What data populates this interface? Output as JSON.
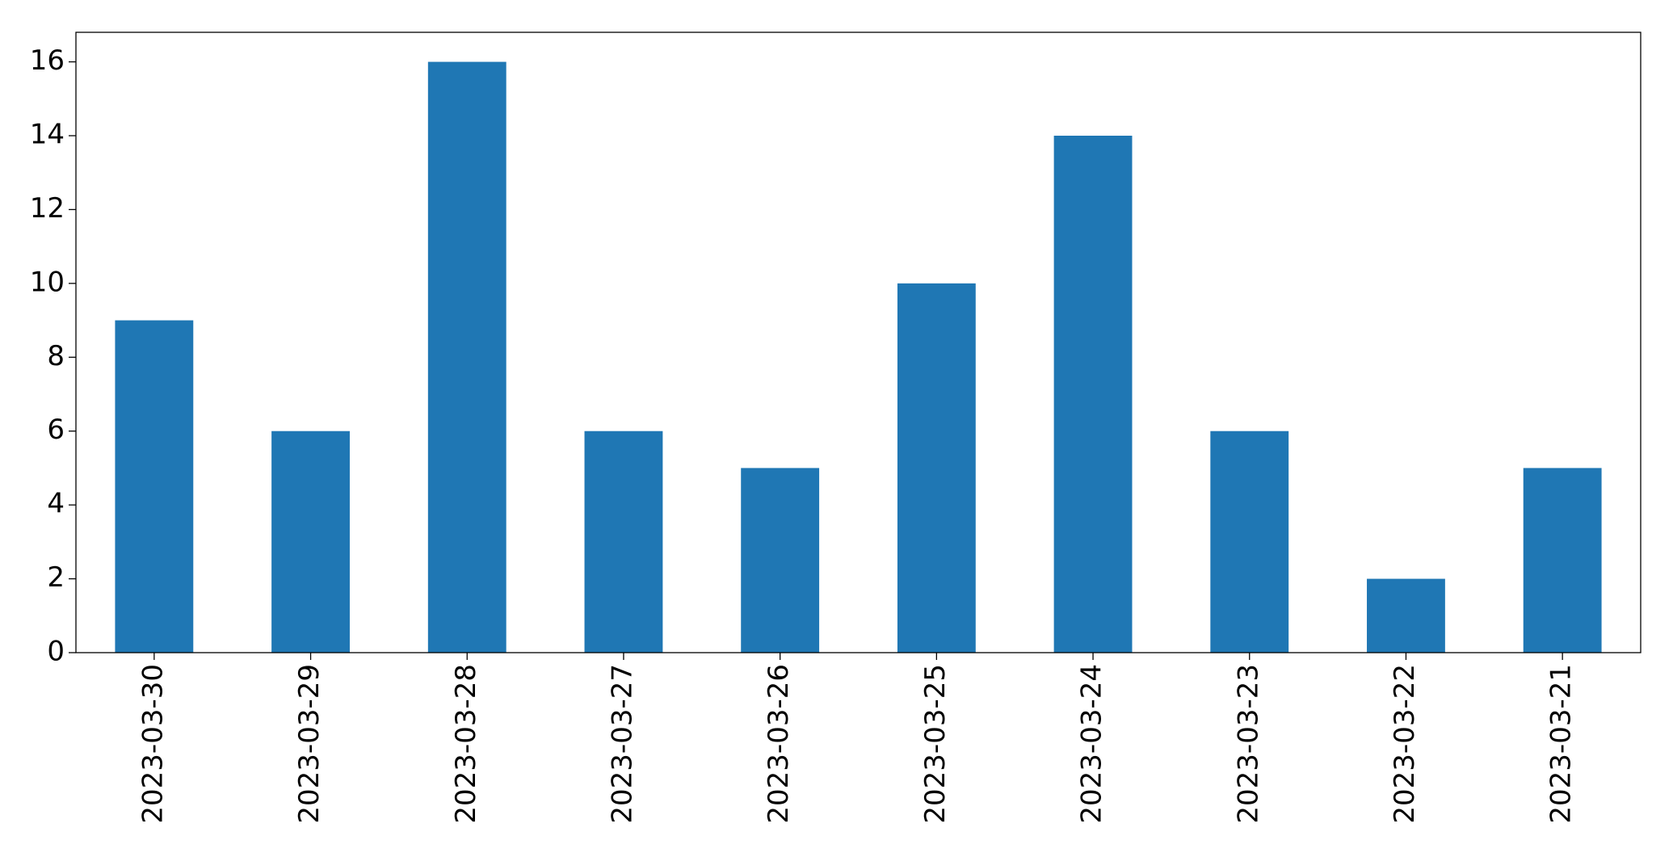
{
  "chart_data": {
    "type": "bar",
    "categories": [
      "2023-03-30",
      "2023-03-29",
      "2023-03-28",
      "2023-03-27",
      "2023-03-26",
      "2023-03-25",
      "2023-03-24",
      "2023-03-23",
      "2023-03-22",
      "2023-03-21"
    ],
    "values": [
      9,
      6,
      16,
      6,
      5,
      10,
      14,
      6,
      2,
      5
    ],
    "color": "#1f77b4",
    "ylim": [
      0,
      16.8
    ],
    "yticks": [
      0,
      2,
      4,
      6,
      8,
      10,
      12,
      14,
      16
    ],
    "grid": false
  }
}
